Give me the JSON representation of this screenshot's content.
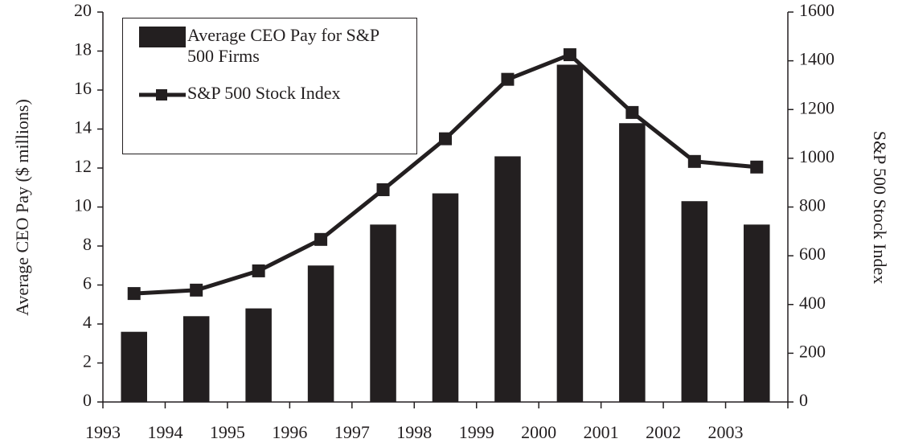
{
  "chart_data": {
    "type": "bar_line",
    "categories": [
      "1993",
      "1994",
      "1995",
      "1996",
      "1997",
      "1998",
      "1999",
      "2000",
      "2001",
      "2002",
      "2003"
    ],
    "series": [
      {
        "name": "Average CEO Pay for S&P 500 Firms",
        "type": "bar",
        "color": "#231f20",
        "values": [
          3.6,
          4.4,
          4.8,
          7.0,
          9.1,
          10.7,
          12.6,
          17.3,
          14.3,
          10.3,
          9.1
        ]
      },
      {
        "name": "S&P 500 Stock Index",
        "type": "line",
        "axis": "y2",
        "color": "#231f20",
        "values": [
          445,
          459,
          538,
          667,
          871,
          1080,
          1324,
          1425,
          1188,
          987,
          964
        ]
      }
    ],
    "ylabel": "Average CEO Pay ($ millions)",
    "y2label": "S&P 500 Stock Index",
    "ylim": [
      0,
      20
    ],
    "yticks": [
      0,
      2,
      4,
      6,
      8,
      10,
      12,
      14,
      16,
      18,
      20
    ],
    "y2lim": [
      0,
      1600
    ],
    "y2ticks": [
      0,
      200,
      400,
      600,
      800,
      1000,
      1200,
      1400,
      1600
    ],
    "grid": false,
    "legend": "upper left"
  }
}
